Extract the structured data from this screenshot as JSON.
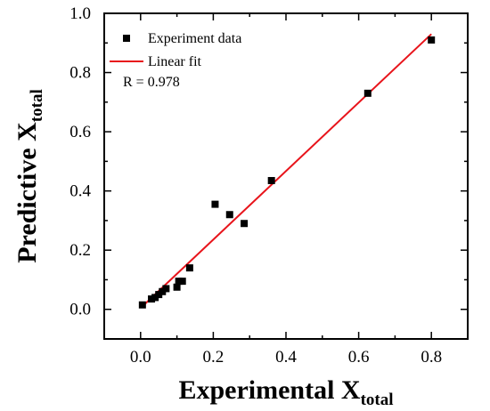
{
  "chart_data": {
    "type": "scatter",
    "xlabel": {
      "main": "Experimental X",
      "sub": "total"
    },
    "ylabel": {
      "main": "Predictive X",
      "sub": "total"
    },
    "xlim": [
      -0.1,
      0.9
    ],
    "ylim": [
      -0.1,
      1.0
    ],
    "xticks": [
      "0.0",
      "0.2",
      "0.4",
      "0.6",
      "0.8"
    ],
    "yticks": [
      "0.0",
      "0.2",
      "0.4",
      "0.6",
      "0.8",
      "1.0"
    ],
    "legend_position": "top-left",
    "grid": false,
    "series": [
      {
        "name": "Experiment data",
        "kind": "scatter",
        "marker": "square",
        "color": "#000000",
        "x": [
          0.005,
          0.03,
          0.04,
          0.05,
          0.06,
          0.07,
          0.1,
          0.105,
          0.115,
          0.135,
          0.205,
          0.245,
          0.285,
          0.36,
          0.625,
          0.8
        ],
        "y": [
          0.015,
          0.035,
          0.04,
          0.05,
          0.06,
          0.07,
          0.075,
          0.095,
          0.095,
          0.14,
          0.355,
          0.32,
          0.29,
          0.435,
          0.73,
          0.91
        ]
      },
      {
        "name": "Linear fit",
        "kind": "line",
        "color": "#e8141b",
        "x": [
          0.005,
          0.8
        ],
        "y": [
          0.01,
          0.93
        ]
      }
    ],
    "annotation": "R = 0.978"
  }
}
